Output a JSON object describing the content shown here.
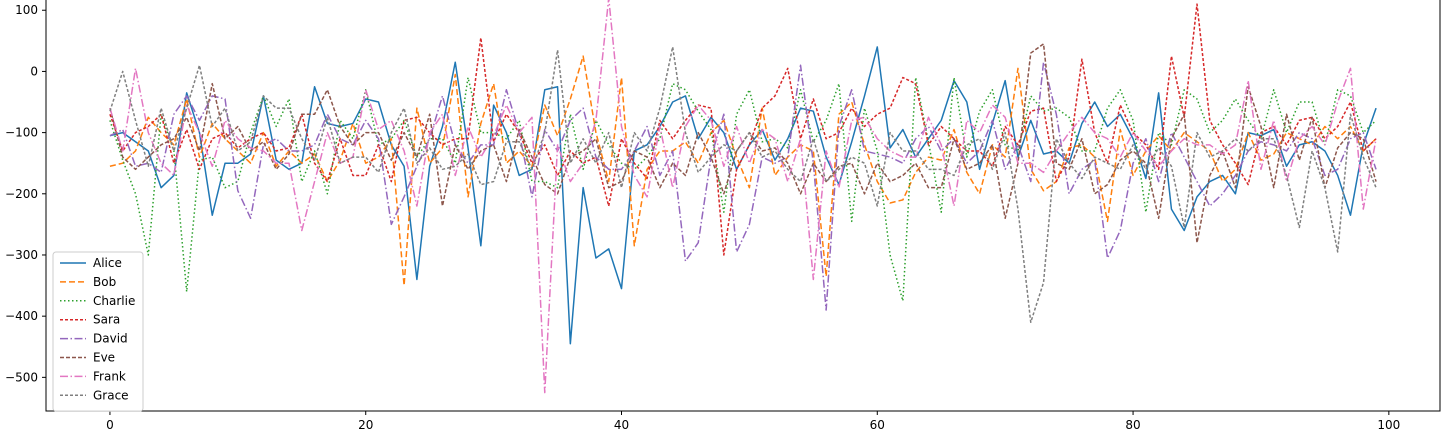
{
  "chart_data": {
    "type": "line",
    "title": "",
    "xlabel": "",
    "ylabel": "",
    "xlim": [
      -5,
      104
    ],
    "ylim": [
      -555,
      120
    ],
    "xticks": [
      0,
      20,
      40,
      60,
      80,
      100
    ],
    "yticks": [
      100,
      0,
      -100,
      -200,
      -300,
      -400,
      -500
    ],
    "grid": false,
    "legend": "bottom-left",
    "series": [
      {
        "name": "Alice",
        "color": "#1f77b4",
        "dash": "solid",
        "values": [
          -105,
          -100,
          -115,
          -130,
          -190,
          -170,
          -35,
          -100,
          -235,
          -150,
          -150,
          -135,
          -40,
          -145,
          -160,
          -150,
          -25,
          -85,
          -90,
          -85,
          -45,
          -50,
          -120,
          -155,
          -340,
          -155,
          -90,
          15,
          -125,
          -285,
          -55,
          -100,
          -170,
          -160,
          -30,
          -25,
          -445,
          -190,
          -305,
          -290,
          -355,
          -130,
          -120,
          -90,
          -50,
          -40,
          -110,
          -75,
          -100,
          -160,
          -120,
          -95,
          -145,
          -110,
          -60,
          -65,
          -140,
          -185,
          -115,
          -40,
          40,
          -125,
          -95,
          -140,
          -110,
          -80,
          -15,
          -50,
          -160,
          -85,
          -15,
          -140,
          -80,
          -135,
          -130,
          -150,
          -85,
          -50,
          -90,
          -70,
          -110,
          -175,
          -35,
          -225,
          -260,
          -205,
          -180,
          -170,
          -200,
          -100,
          -105,
          -95,
          -155,
          -120,
          -115,
          -130,
          -170,
          -235,
          -120,
          -60
        ]
      },
      {
        "name": "Bob",
        "color": "#ff7f0e",
        "dash": "6,3",
        "values": [
          -155,
          -150,
          -130,
          -75,
          -100,
          -120,
          -45,
          -140,
          -85,
          -110,
          -130,
          -150,
          -100,
          -155,
          -130,
          -150,
          -135,
          -180,
          -145,
          -85,
          -150,
          -140,
          -110,
          -350,
          -60,
          -150,
          -125,
          -5,
          -205,
          -85,
          -20,
          -150,
          -130,
          -155,
          -55,
          -105,
          -45,
          25,
          -100,
          -180,
          -10,
          -285,
          -160,
          -130,
          -130,
          -115,
          -150,
          -100,
          -80,
          -140,
          -190,
          -60,
          -170,
          -140,
          -120,
          -130,
          -335,
          -70,
          -50,
          -120,
          -180,
          -215,
          -210,
          -165,
          -140,
          -145,
          -95,
          -165,
          -200,
          -120,
          -140,
          5,
          -160,
          -195,
          -180,
          -125,
          -120,
          -140,
          -245,
          -95,
          -170,
          -130,
          -105,
          -130,
          -100,
          -115,
          -130,
          -180,
          -160,
          -100,
          -145,
          -135,
          -100,
          -110,
          -120,
          -90,
          -110,
          -90,
          -130,
          -110
        ]
      },
      {
        "name": "Charlie",
        "color": "#2ca02c",
        "dash": "1.5,2.5",
        "values": [
          -80,
          -145,
          -200,
          -300,
          -70,
          -130,
          -360,
          -145,
          -140,
          -190,
          -180,
          -100,
          -40,
          -90,
          -45,
          -180,
          -130,
          -200,
          -80,
          -110,
          -30,
          -120,
          -110,
          -80,
          -140,
          -110,
          -110,
          -150,
          -10,
          -100,
          -100,
          -110,
          -80,
          -180,
          -180,
          -190,
          -70,
          -160,
          -80,
          -120,
          -150,
          -160,
          -140,
          -110,
          -20,
          -30,
          -65,
          -95,
          -230,
          -70,
          -30,
          -115,
          -110,
          -125,
          -30,
          -115,
          -80,
          -20,
          -245,
          -60,
          -130,
          -300,
          -375,
          -10,
          -115,
          -230,
          -10,
          -140,
          -65,
          -30,
          -120,
          -130,
          -40,
          -65,
          -60,
          -75,
          -130,
          -130,
          -60,
          -30,
          -80,
          -230,
          -100,
          -120,
          -30,
          -45,
          -100,
          -80,
          -45,
          -80,
          -110,
          -30,
          -100,
          -50,
          -50,
          -120,
          -30,
          -40,
          -100,
          -80
        ]
      },
      {
        "name": "Sara",
        "color": "#d62728",
        "dash": "3,2",
        "values": [
          -70,
          -130,
          -100,
          -90,
          -70,
          -150,
          -95,
          -160,
          -110,
          -100,
          -125,
          -110,
          -100,
          -130,
          -125,
          -70,
          -150,
          -180,
          -110,
          -170,
          -170,
          -120,
          -180,
          -80,
          -75,
          -100,
          -120,
          -110,
          -110,
          55,
          -115,
          -70,
          -100,
          -150,
          -120,
          -170,
          -130,
          -150,
          -140,
          -220,
          -110,
          -150,
          -175,
          -80,
          -110,
          -80,
          -55,
          -60,
          -300,
          -160,
          -120,
          -60,
          -40,
          5,
          -110,
          -45,
          -110,
          -100,
          -60,
          -90,
          -70,
          -60,
          -10,
          -20,
          -120,
          -90,
          -110,
          -130,
          -130,
          -155,
          -90,
          -120,
          -65,
          -60,
          -180,
          -140,
          20,
          -100,
          -150,
          -55,
          -100,
          -120,
          -160,
          25,
          -75,
          110,
          -80,
          -120,
          -150,
          -185,
          -100,
          -90,
          -120,
          -80,
          -75,
          -110,
          -90,
          -50,
          -130,
          -110
        ]
      },
      {
        "name": "David",
        "color": "#9467bd",
        "dash": "8,2.5,1.5,2.5",
        "values": [
          -105,
          -95,
          -155,
          -150,
          -165,
          -70,
          -40,
          -80,
          -40,
          -45,
          -195,
          -240,
          -120,
          -110,
          -130,
          -130,
          -120,
          -70,
          -110,
          -120,
          -80,
          -110,
          -250,
          -205,
          -155,
          -110,
          -40,
          -120,
          -150,
          -120,
          -120,
          -30,
          -100,
          -205,
          -95,
          -130,
          -80,
          -60,
          -140,
          -160,
          -160,
          -130,
          -90,
          -170,
          -130,
          -310,
          -280,
          -140,
          -70,
          -295,
          -250,
          -140,
          -150,
          -140,
          10,
          -150,
          -390,
          -90,
          -30,
          -130,
          -135,
          -140,
          -150,
          -110,
          -90,
          -130,
          -110,
          -150,
          -130,
          -80,
          -160,
          -120,
          -180,
          15,
          -70,
          -200,
          -160,
          -145,
          -305,
          -260,
          -150,
          -110,
          -180,
          -100,
          -140,
          -180,
          -220,
          -200,
          -170,
          -130,
          -115,
          -120,
          -130,
          -100,
          -110,
          -170,
          -160,
          -110,
          -100,
          -160
        ]
      },
      {
        "name": "Eve",
        "color": "#8c564b",
        "dash": "4,2",
        "values": [
          -60,
          -140,
          -160,
          -140,
          -120,
          -110,
          -75,
          -130,
          -20,
          -110,
          -90,
          -130,
          -115,
          -160,
          -135,
          -70,
          -70,
          -30,
          -90,
          -120,
          -100,
          -100,
          -145,
          -100,
          -140,
          -70,
          -220,
          -120,
          -160,
          -130,
          -120,
          -180,
          -95,
          -140,
          -185,
          -200,
          -140,
          -130,
          -110,
          -190,
          -180,
          -130,
          -140,
          -190,
          -150,
          -170,
          -100,
          -140,
          -200,
          -130,
          -100,
          -130,
          -125,
          -150,
          -200,
          -150,
          -180,
          -155,
          -150,
          -200,
          -150,
          -180,
          -170,
          -150,
          -190,
          -190,
          -110,
          -160,
          -150,
          -120,
          -240,
          -150,
          30,
          45,
          -150,
          -160,
          -110,
          -200,
          -185,
          -145,
          -130,
          -150,
          -240,
          -110,
          -70,
          -280,
          -170,
          -130,
          -190,
          -25,
          -90,
          -190,
          -70,
          -145,
          -75,
          -190,
          -125,
          -100,
          -110,
          -180
        ]
      },
      {
        "name": "Frank",
        "color": "#e377c2",
        "dash": "8,2.5,1.5,2.5",
        "values": [
          -60,
          -130,
          5,
          -100,
          -150,
          -170,
          -55,
          -100,
          -155,
          -80,
          -110,
          -125,
          -130,
          -150,
          -150,
          -260,
          -180,
          -100,
          -150,
          -140,
          -30,
          -95,
          -80,
          -130,
          -220,
          -100,
          -70,
          -170,
          -90,
          -140,
          -105,
          -55,
          -100,
          -75,
          -525,
          -120,
          -180,
          -150,
          -80,
          120,
          -90,
          -170,
          -205,
          -90,
          -190,
          -90,
          -55,
          -80,
          -155,
          -90,
          -150,
          -95,
          -110,
          -180,
          -110,
          -340,
          -130,
          -190,
          -80,
          -75,
          -110,
          -130,
          -140,
          -140,
          -75,
          -120,
          -220,
          -80,
          -100,
          -55,
          -75,
          -150,
          -150,
          -165,
          -130,
          -100,
          -75,
          -100,
          -110,
          -140,
          -100,
          -130,
          -155,
          -130,
          -110,
          -120,
          -120,
          -135,
          -120,
          -15,
          -160,
          -80,
          -180,
          -110,
          -90,
          -120,
          -50,
          5,
          -225,
          -110
        ]
      },
      {
        "name": "Grace",
        "color": "#7f7f7f",
        "dash": "3,2",
        "values": [
          -65,
          0,
          -80,
          -155,
          -60,
          -130,
          -60,
          10,
          -90,
          -60,
          -130,
          -115,
          -40,
          -60,
          -60,
          -110,
          -145,
          -75,
          -150,
          -140,
          -140,
          -165,
          -100,
          -60,
          -150,
          -125,
          -160,
          -155,
          -135,
          -185,
          -180,
          -115,
          -115,
          -160,
          -100,
          35,
          -150,
          -110,
          -150,
          -100,
          -190,
          -100,
          -130,
          -60,
          40,
          -100,
          -165,
          -140,
          -120,
          -130,
          -100,
          -140,
          -130,
          -160,
          -180,
          -110,
          -180,
          -160,
          -140,
          -150,
          -220,
          -100,
          -130,
          -130,
          -160,
          -160,
          -170,
          -120,
          -110,
          -160,
          -100,
          -225,
          -410,
          -345,
          -110,
          -150,
          -175,
          -140,
          -150,
          -160,
          -120,
          -160,
          -125,
          -155,
          -255,
          -100,
          -140,
          -130,
          -110,
          -130,
          -110,
          -110,
          -170,
          -255,
          -130,
          -190,
          -295,
          -70,
          -140,
          -190
        ]
      }
    ]
  }
}
